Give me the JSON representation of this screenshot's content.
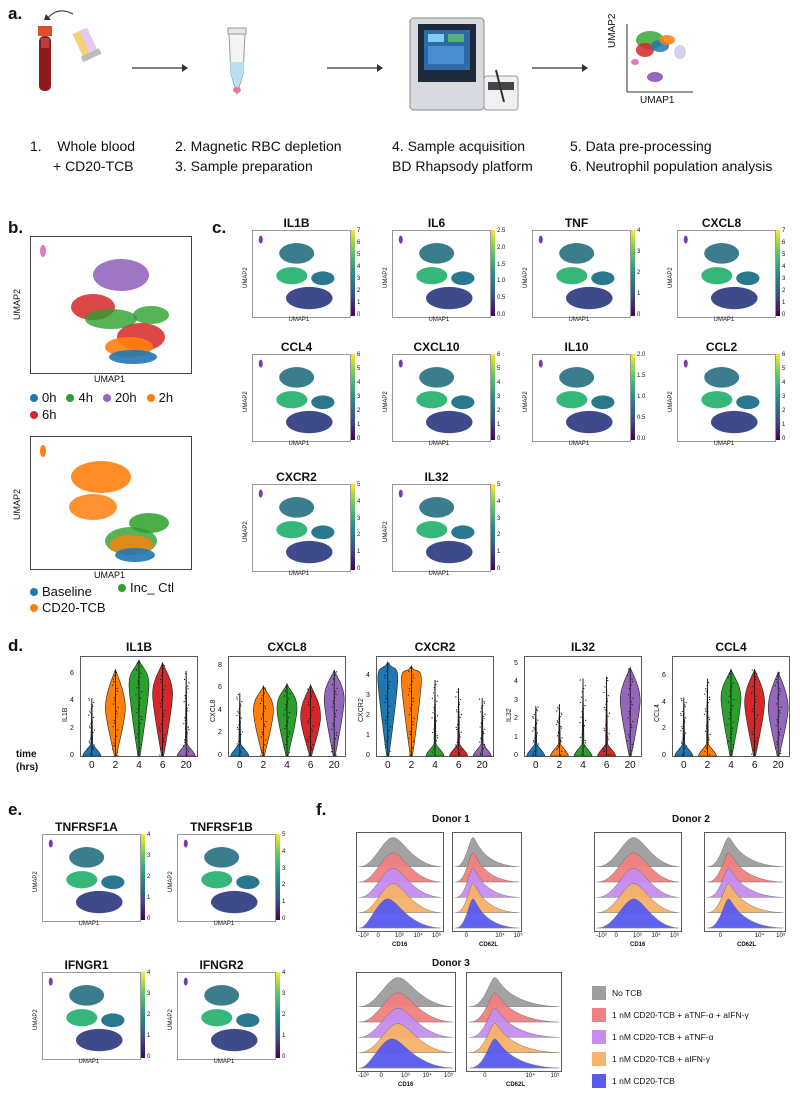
{
  "panels": {
    "a": "a.",
    "b": "b.",
    "c": "c.",
    "d": "d.",
    "e": "e.",
    "f": "f."
  },
  "workflow": {
    "steps": [
      {
        "num": "1.",
        "line1": "Whole blood",
        "line2": "+ CD20-TCB"
      },
      {
        "line1": "2. Magnetic RBC depletion",
        "line2": "3. Sample preparation"
      },
      {
        "line1": "4. Sample acquisition",
        "line2": "BD Rhapsody platform"
      },
      {
        "line1": "5. Data pre-processing",
        "line2": "6. Neutrophil population analysis"
      }
    ],
    "mini_umap": {
      "xlabel": "UMAP1",
      "ylabel": "UMAP2"
    }
  },
  "panel_b": {
    "xlabel": "UMAP1",
    "ylabel": "UMAP2",
    "time_legend": [
      {
        "label": "0h",
        "color": "#1f77b4"
      },
      {
        "label": "4h",
        "color": "#2ca02c"
      },
      {
        "label": "20h",
        "color": "#9467bd"
      },
      {
        "label": "2h",
        "color": "#ff7f0e"
      },
      {
        "label": "6h",
        "color": "#d62728"
      }
    ],
    "cond_legend": [
      {
        "label": "Baseline",
        "color": "#1f77b4"
      },
      {
        "label": "Inc_ Ctl",
        "color": "#2ca02c"
      },
      {
        "label": "CD20-TCB",
        "color": "#ff7f0e"
      }
    ]
  },
  "panel_c": {
    "xlabel": "UMAP1",
    "ylabel": "UMAP2",
    "genes": [
      {
        "name": "IL1B",
        "ticks": [
          "0",
          "1",
          "2",
          "3",
          "4",
          "5",
          "6",
          "7"
        ]
      },
      {
        "name": "IL6",
        "ticks": [
          "0.0",
          "0.5",
          "1.0",
          "1.5",
          "2.0",
          "2.5"
        ]
      },
      {
        "name": "TNF",
        "ticks": [
          "0",
          "1",
          "2",
          "3",
          "4"
        ]
      },
      {
        "name": "CXCL8",
        "ticks": [
          "0",
          "1",
          "2",
          "3",
          "4",
          "5",
          "6",
          "7"
        ]
      },
      {
        "name": "CCL4",
        "ticks": [
          "0",
          "1",
          "2",
          "3",
          "4",
          "5",
          "6"
        ]
      },
      {
        "name": "CXCL10",
        "ticks": [
          "0",
          "1",
          "2",
          "3",
          "4",
          "5",
          "6"
        ]
      },
      {
        "name": "IL10",
        "ticks": [
          "0.0",
          "0.5",
          "1.0",
          "1.5",
          "2.0"
        ]
      },
      {
        "name": "CCL2",
        "ticks": [
          "0",
          "1",
          "2",
          "3",
          "4",
          "5",
          "6"
        ]
      },
      {
        "name": "CXCR2",
        "ticks": [
          "0",
          "1",
          "2",
          "3",
          "4",
          "5"
        ]
      },
      {
        "name": "IL32",
        "ticks": [
          "0",
          "1",
          "2",
          "3",
          "4",
          "5"
        ]
      }
    ]
  },
  "panel_d": {
    "time_label": "time",
    "hrs_label": "(hrs)",
    "chart_data": [
      {
        "type": "violin",
        "title": "IL1B",
        "ylabel": "IL1B",
        "categories": [
          "0",
          "2",
          "4",
          "6",
          "20"
        ],
        "yticks": [
          "0",
          "2",
          "4",
          "6"
        ],
        "ylim": [
          0,
          7
        ],
        "median": [
          0.2,
          3.5,
          5.2,
          4.5,
          0.5
        ],
        "max": [
          4.2,
          6.3,
          7.0,
          6.8,
          6.2
        ]
      },
      {
        "type": "violin",
        "title": "CXCL8",
        "ylabel": "CXCL8",
        "categories": [
          "0",
          "2",
          "4",
          "6",
          "20"
        ],
        "yticks": [
          "0",
          "2",
          "4",
          "6",
          "8"
        ],
        "ylim": [
          0,
          8.5
        ],
        "median": [
          0.3,
          4.0,
          4.2,
          3.5,
          5.0
        ],
        "max": [
          5.6,
          6.2,
          6.4,
          6.3,
          7.6
        ]
      },
      {
        "type": "violin",
        "title": "CXCR2",
        "ylabel": "CXCR2",
        "categories": [
          "0",
          "2",
          "4",
          "6",
          "20"
        ],
        "yticks": [
          "0",
          "1",
          "2",
          "3",
          "4"
        ],
        "ylim": [
          0,
          4.8
        ],
        "median": [
          3.9,
          3.8,
          0.3,
          0.2,
          0.1
        ],
        "max": [
          4.7,
          4.5,
          3.8,
          3.4,
          2.9
        ]
      },
      {
        "type": "violin",
        "title": "IL32",
        "ylabel": "IL32",
        "categories": [
          "0",
          "2",
          "4",
          "6",
          "20"
        ],
        "yticks": [
          "0",
          "1",
          "2",
          "3",
          "4",
          "5"
        ],
        "ylim": [
          0,
          5.2
        ],
        "median": [
          0.1,
          0.1,
          0.1,
          0.2,
          3.0
        ],
        "max": [
          2.7,
          2.8,
          4.2,
          4.3,
          4.8
        ]
      },
      {
        "type": "violin",
        "title": "CCL4",
        "ylabel": "CCL4",
        "categories": [
          "0",
          "2",
          "4",
          "6",
          "20"
        ],
        "yticks": [
          "0",
          "2",
          "4",
          "6"
        ],
        "ylim": [
          0,
          7.2
        ],
        "median": [
          0.2,
          1.2,
          4.3,
          4.0,
          3.6
        ],
        "max": [
          4.4,
          5.8,
          6.5,
          6.5,
          6.3
        ]
      }
    ],
    "colors": [
      "#1f77b4",
      "#ff7f0e",
      "#2ca02c",
      "#d62728",
      "#9467bd"
    ]
  },
  "panel_e": {
    "xlabel": "UMAP1",
    "ylabel": "UMAP2",
    "genes": [
      {
        "name": "TNFRSF1A",
        "ticks": [
          "0",
          "1",
          "2",
          "3",
          "4"
        ]
      },
      {
        "name": "TNFRSF1B",
        "ticks": [
          "0",
          "1",
          "2",
          "3",
          "4",
          "5"
        ]
      },
      {
        "name": "IFNGR1",
        "ticks": [
          "0",
          "1",
          "2",
          "3",
          "4"
        ]
      },
      {
        "name": "IFNGR2",
        "ticks": [
          "0",
          "1",
          "2",
          "3",
          "4"
        ]
      }
    ]
  },
  "panel_f": {
    "donors": [
      "Donor 1",
      "Donor 2",
      "Donor 3"
    ],
    "markers": [
      "CD16",
      "CD62L"
    ],
    "xticks_cd16": [
      "-10³",
      "0",
      "10³",
      "10⁴",
      "10⁵"
    ],
    "xticks_cd62l": [
      "0",
      "10⁴",
      "10⁵"
    ],
    "legend": [
      {
        "label": "No TCB",
        "color": "#9e9e9e"
      },
      {
        "label": "1 nM CD20-TCB + aTNF-α + aIFN-γ",
        "color": "#f08080"
      },
      {
        "label": "1 nM CD20-TCB + aTNF-α",
        "color": "#c58df0"
      },
      {
        "label": "1 nM CD20-TCB + aIFN-γ",
        "color": "#f7b26b"
      },
      {
        "label": "1 nM CD20-TCB",
        "color": "#5a5af0"
      }
    ]
  }
}
